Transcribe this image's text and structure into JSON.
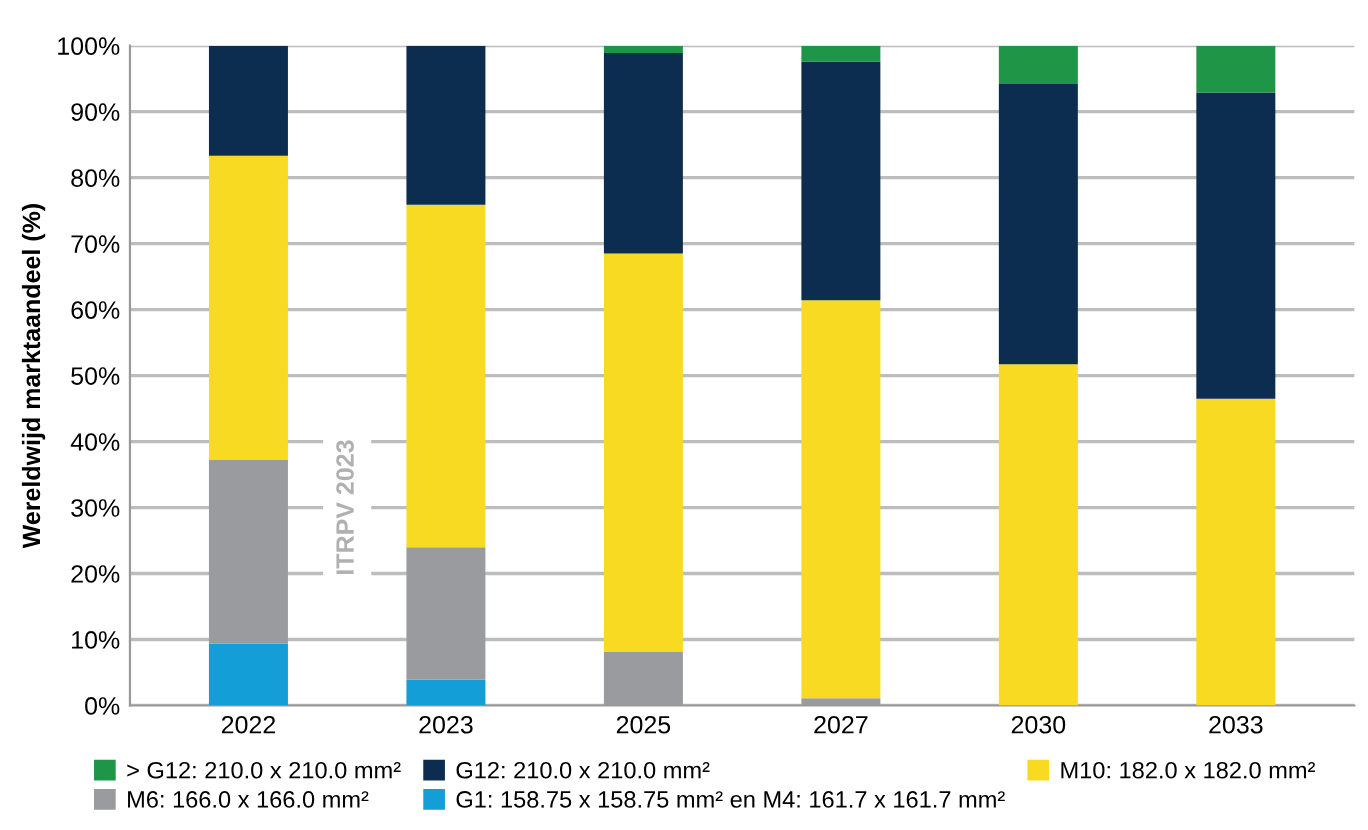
{
  "chart_data": {
    "type": "bar",
    "stacked": true,
    "ylabel": "Wereldwijd marktaandeel (%)",
    "categories": [
      "2022",
      "2023",
      "2025",
      "2027",
      "2030",
      "2033"
    ],
    "series": [
      {
        "name": "G1: 158.75 x 158.75 mm² en M4: 161.7 x 161.7 mm²",
        "color": "#149ed8",
        "values": [
          9.4,
          3.9,
          null,
          null,
          null,
          null
        ]
      },
      {
        "name": "M6: 166.0 x 166.0 mm²",
        "color": "#9a9b9e",
        "values": [
          27.9,
          20.1,
          8.1,
          1.1,
          null,
          null
        ]
      },
      {
        "name": "M10: 182.0 x 182.0 mm²",
        "color": "#f8da22",
        "values": [
          46.0,
          51.9,
          60.4,
          60.3,
          51.7,
          46.5
        ]
      },
      {
        "name": "G12: 210.0 x 210.0 mm²",
        "color": "#0d2d50",
        "values": [
          16.7,
          24.1,
          30.4,
          36.2,
          42.5,
          46.4
        ]
      },
      {
        "name": "> G12: 210.0 x 210.0 mm²",
        "color": "#1f9547",
        "values": [
          null,
          null,
          1.1,
          2.4,
          5.8,
          7.1
        ]
      }
    ],
    "ylim": [
      0,
      100
    ],
    "yticks": [
      {
        "value": 0,
        "label": "0%"
      },
      {
        "value": 10,
        "label": "10%"
      },
      {
        "value": 20,
        "label": "20%"
      },
      {
        "value": 30,
        "label": "30%"
      },
      {
        "value": 40,
        "label": "40%"
      },
      {
        "value": 50,
        "label": "50%"
      },
      {
        "value": 60,
        "label": "60%"
      },
      {
        "value": 70,
        "label": "70%"
      },
      {
        "value": 80,
        "label": "80%"
      },
      {
        "value": 90,
        "label": "90%"
      },
      {
        "value": 100,
        "label": "100%"
      }
    ],
    "grid": "y",
    "legend": "bottom",
    "annotations": [
      "ITRPV 2023"
    ]
  }
}
